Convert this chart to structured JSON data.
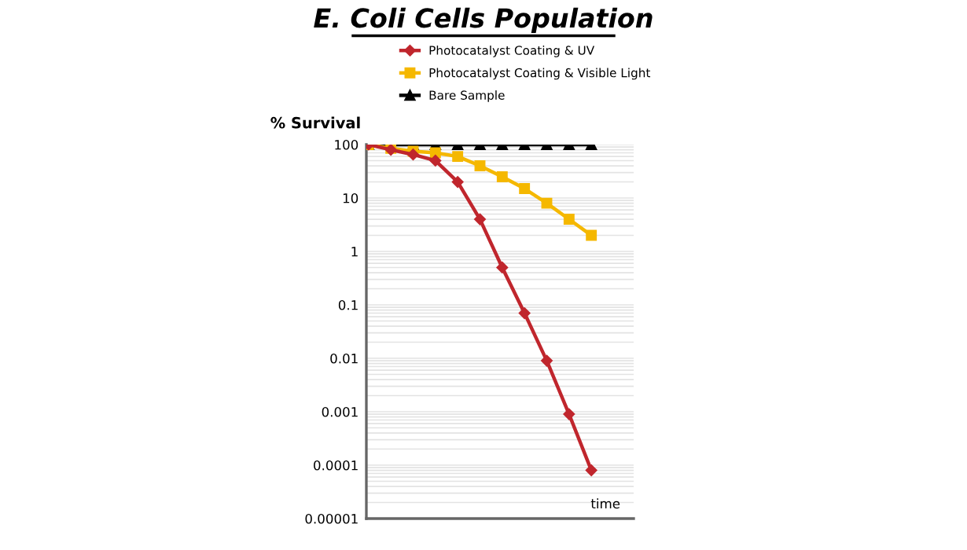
{
  "chart_data": {
    "type": "line",
    "title": "E. Coli Cells Population",
    "ylabel": "% Survival",
    "xlabel": "time",
    "categories": [
      null,
      null,
      null,
      null,
      null,
      null,
      null,
      null,
      null,
      null,
      null
    ],
    "series": [
      {
        "name": "Photocatalyst Coating & UV",
        "color": "#c0262d",
        "marker": "diamond",
        "values": [
          100,
          80,
          65,
          50,
          20,
          4,
          0.5,
          0.07,
          0.009,
          0.0009,
          8e-05
        ]
      },
      {
        "name": "Photocatalyst Coating & Visible Light",
        "color": "#f5b800",
        "marker": "square",
        "values": [
          100,
          85,
          75,
          70,
          60,
          40,
          25,
          15,
          8,
          4,
          2
        ]
      },
      {
        "name": "Bare Sample",
        "color": "#000000",
        "marker": "triangle",
        "values": [
          100,
          100,
          100,
          100,
          100,
          100,
          100,
          100,
          100,
          100,
          100
        ]
      }
    ],
    "log": "y",
    "ylim": [
      1e-05,
      100
    ],
    "yticks": [
      {
        "value": 100,
        "label": "100"
      },
      {
        "value": 10,
        "label": "10"
      },
      {
        "value": 1,
        "label": "1"
      },
      {
        "value": 0.1,
        "label": "0.1"
      },
      {
        "value": 0.01,
        "label": "0.01"
      },
      {
        "value": 0.001,
        "label": "0.001"
      },
      {
        "value": 0.0001,
        "label": "0.0001"
      },
      {
        "value": 1e-05,
        "label": "0.00001"
      }
    ],
    "grid": "y",
    "legend": "top",
    "line_style": "solid"
  }
}
